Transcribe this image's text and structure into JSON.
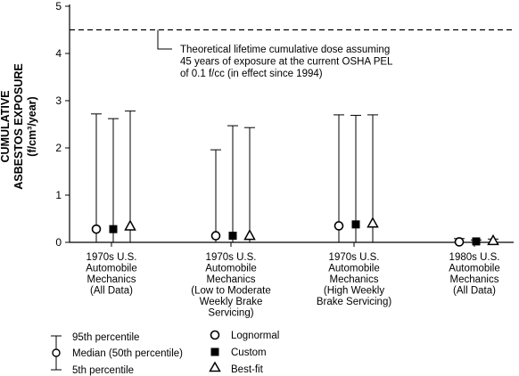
{
  "chart_data": {
    "type": "scatter",
    "ylabel_line1": "CUMULATIVE",
    "ylabel_line2": "ASBESTOS EXPOSURE",
    "ylabel_unit": "(f/cm³/year)",
    "ylim": [
      0,
      5
    ],
    "yticks": [
      "0",
      "1",
      "2",
      "3",
      "4",
      "5"
    ],
    "reference_line": {
      "value": 4.5,
      "label_lines": [
        "Theoretical lifetime cumulative dose assuming",
        "45 years of exposure at the current OSHA PEL",
        "of 0.1 f/cc (in effect since 1994)"
      ]
    },
    "categories": [
      {
        "label_lines": [
          "1970s U.S.",
          "Automobile",
          "Mechanics",
          "(All Data)"
        ]
      },
      {
        "label_lines": [
          "1970s U.S.",
          "Automobile",
          "Mechanics",
          "(Low to Moderate",
          "Weekly Brake",
          "Servicing)"
        ]
      },
      {
        "label_lines": [
          "1970s U.S.",
          "Automobile",
          "Mechanics",
          "(High Weekly",
          "Brake Servicing)"
        ]
      },
      {
        "label_lines": [
          "1980s U.S.",
          "Automobile",
          "Mechanics",
          "(All Data)"
        ]
      }
    ],
    "series": [
      {
        "name": "Lognormal",
        "marker": "circle",
        "median": [
          0.28,
          0.14,
          0.35,
          0.01
        ],
        "p5": [
          0.0,
          0.0,
          0.0,
          0.0
        ],
        "p95": [
          2.72,
          1.96,
          2.7,
          0.08
        ]
      },
      {
        "name": "Custom",
        "marker": "square",
        "median": [
          0.28,
          0.14,
          0.38,
          0.02
        ],
        "p5": [
          0.0,
          0.0,
          0.0,
          0.0
        ],
        "p95": [
          2.62,
          2.47,
          2.69,
          0.05
        ]
      },
      {
        "name": "Best-fit",
        "marker": "triangle",
        "median": [
          0.34,
          0.14,
          0.4,
          0.03
        ],
        "p5": [
          0.0,
          0.0,
          0.0,
          0.0
        ],
        "p95": [
          2.78,
          2.43,
          2.7,
          0.07
        ]
      }
    ],
    "legend_errorbar": {
      "p95": "95th percentile",
      "median": "Median (50th percentile)",
      "p5": "5th percentile"
    }
  }
}
